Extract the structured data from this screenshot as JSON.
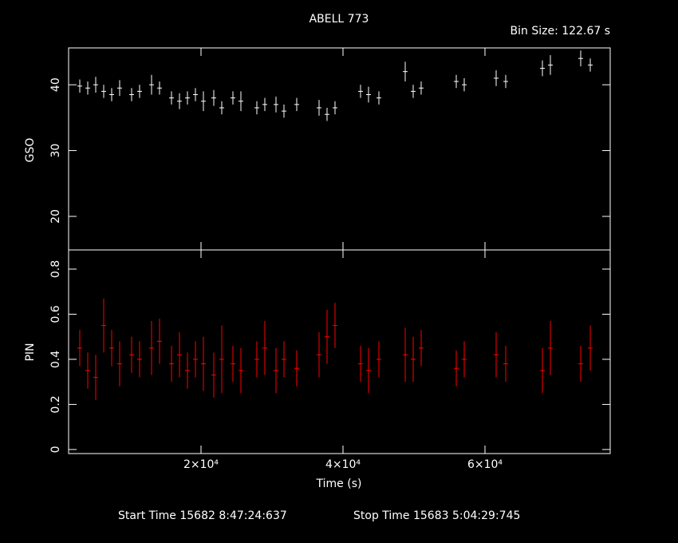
{
  "chart_data": [
    {
      "type": "errorbar",
      "title": "ABELL 773",
      "subtitle": "Bin Size: 122.67 s",
      "y_label": "GSO",
      "color": "#ffffff",
      "x": [
        2923,
        4047,
        5170,
        6294,
        7417,
        8541,
        10226,
        11350,
        13035,
        14159,
        15844,
        16968,
        18092,
        19215,
        20339,
        21800,
        22923,
        24496,
        25620,
        27867,
        28991,
        30564,
        31687,
        33485,
        36631,
        37755,
        38878,
        42474,
        43597,
        45058,
        48766,
        49889,
        51013,
        55957,
        57080,
        61575,
        62923,
        68092,
        69215,
        73485,
        74833
      ],
      "values": [
        39.8,
        39.5,
        40,
        39,
        38.5,
        39.5,
        38.5,
        39,
        40,
        39.5,
        38,
        37.5,
        38,
        38.5,
        37.5,
        38,
        36.5,
        38,
        37.5,
        36.5,
        37,
        37,
        36,
        37,
        36.5,
        35.5,
        36.5,
        39,
        38.5,
        38,
        42,
        39,
        39.5,
        40.5,
        40,
        41,
        40.5,
        42.5,
        43,
        44,
        43
      ],
      "errors": [
        1,
        1,
        1.2,
        1,
        1,
        1.2,
        1,
        1,
        1.5,
        1,
        1,
        1.2,
        1,
        1,
        1.5,
        1.2,
        1,
        1,
        1.5,
        1,
        1,
        1.2,
        1,
        1,
        1.2,
        1,
        1,
        1,
        1.2,
        1,
        1.5,
        1,
        1,
        1,
        1,
        1.2,
        1,
        1.2,
        1.5,
        1.2,
        1
      ],
      "xlim": [
        1350,
        77640
      ],
      "xticks": [
        20000,
        40000,
        60000
      ],
      "ylim": [
        14.9,
        45.6
      ],
      "yticks": [
        20,
        30,
        40
      ]
    },
    {
      "type": "errorbar",
      "x_label": "Time (s)",
      "y_label": "PIN",
      "color": "#ff0000",
      "annotations": [
        "Start Time 15682  8:47:24:637",
        "Stop Time 15683  5:04:29:745"
      ],
      "x": [
        2923,
        4047,
        5170,
        6294,
        7417,
        8541,
        10226,
        11350,
        13035,
        14159,
        15844,
        16968,
        18092,
        19215,
        20339,
        21800,
        22923,
        24496,
        25620,
        27867,
        28991,
        30564,
        31687,
        33485,
        36631,
        37755,
        38878,
        42474,
        43597,
        45058,
        48766,
        49889,
        51013,
        55957,
        57080,
        61575,
        62923,
        68092,
        69215,
        73485,
        74833
      ],
      "values": [
        0.45,
        0.35,
        0.32,
        0.55,
        0.45,
        0.38,
        0.42,
        0.4,
        0.45,
        0.48,
        0.38,
        0.42,
        0.35,
        0.4,
        0.38,
        0.33,
        0.4,
        0.38,
        0.35,
        0.4,
        0.45,
        0.35,
        0.4,
        0.36,
        0.42,
        0.5,
        0.55,
        0.38,
        0.35,
        0.4,
        0.42,
        0.4,
        0.45,
        0.36,
        0.4,
        0.42,
        0.38,
        0.35,
        0.45,
        0.38,
        0.45
      ],
      "errors": [
        0.08,
        0.08,
        0.1,
        0.12,
        0.08,
        0.1,
        0.08,
        0.08,
        0.12,
        0.1,
        0.08,
        0.1,
        0.08,
        0.08,
        0.12,
        0.1,
        0.15,
        0.08,
        0.1,
        0.08,
        0.12,
        0.1,
        0.08,
        0.08,
        0.1,
        0.12,
        0.1,
        0.08,
        0.1,
        0.08,
        0.12,
        0.1,
        0.08,
        0.08,
        0.08,
        0.1,
        0.08,
        0.1,
        0.12,
        0.08,
        0.1
      ],
      "xlim": [
        1350,
        77640
      ],
      "xticks": [
        {
          "value": 20000,
          "label": "2×10⁴"
        },
        {
          "value": 40000,
          "label": "4×10⁴"
        },
        {
          "value": 60000,
          "label": "6×10⁴"
        }
      ],
      "ylim": [
        -0.018,
        0.885
      ],
      "yticks": [
        0,
        0.2,
        0.4,
        0.6,
        0.8
      ]
    }
  ]
}
